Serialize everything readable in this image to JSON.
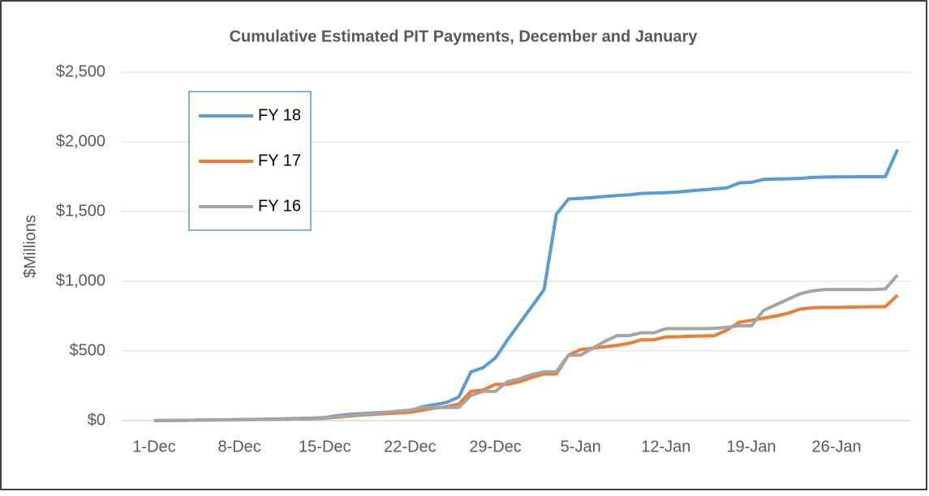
{
  "chart_data": {
    "type": "line",
    "title": "Cumulative Estimated PIT Payments, December and January",
    "y_label": "$Millions",
    "categories": [
      "1-Dec",
      null,
      null,
      null,
      null,
      null,
      null,
      "8-Dec",
      null,
      null,
      null,
      null,
      null,
      null,
      "15-Dec",
      null,
      null,
      null,
      null,
      null,
      null,
      "22-Dec",
      null,
      null,
      null,
      null,
      null,
      null,
      "29-Dec",
      null,
      null,
      null,
      null,
      null,
      null,
      "5-Jan",
      null,
      null,
      null,
      null,
      null,
      null,
      "12-Jan",
      null,
      null,
      null,
      null,
      null,
      null,
      "19-Jan",
      null,
      null,
      null,
      null,
      null,
      null,
      "26-Jan",
      null,
      null,
      null,
      null,
      null
    ],
    "series": [
      {
        "name": "FY 18",
        "color": "#5b9bd5",
        "values": [
          0,
          1,
          2,
          3,
          4,
          5,
          6,
          7,
          9,
          10,
          12,
          14,
          16,
          18,
          22,
          35,
          45,
          50,
          55,
          60,
          65,
          70,
          100,
          115,
          130,
          170,
          350,
          380,
          450,
          580,
          700,
          820,
          940,
          1480,
          1590,
          1595,
          1600,
          1608,
          1615,
          1620,
          1630,
          1632,
          1635,
          1640,
          1648,
          1655,
          1662,
          1670,
          1705,
          1710,
          1730,
          1733,
          1735,
          1738,
          1745,
          1747,
          1748,
          1749,
          1750,
          1750,
          1750,
          1945
        ]
      },
      {
        "name": "FY 17",
        "color": "#ed7d31",
        "values": [
          0,
          1,
          2,
          3,
          4,
          5,
          6,
          7,
          8,
          9,
          10,
          11,
          12,
          14,
          17,
          25,
          32,
          40,
          45,
          50,
          55,
          60,
          75,
          90,
          100,
          120,
          210,
          220,
          260,
          260,
          280,
          310,
          335,
          335,
          470,
          510,
          520,
          530,
          540,
          555,
          580,
          580,
          600,
          602,
          605,
          607,
          610,
          650,
          705,
          720,
          735,
          750,
          770,
          800,
          810,
          812,
          813,
          814,
          815,
          816,
          818,
          900
        ]
      },
      {
        "name": "FY 16",
        "color": "#a5a5a5",
        "values": [
          0,
          1,
          2,
          3,
          4,
          5,
          6,
          7,
          8,
          9,
          10,
          11,
          12,
          14,
          18,
          28,
          36,
          44,
          52,
          60,
          68,
          75,
          95,
          95,
          95,
          95,
          180,
          210,
          210,
          280,
          300,
          330,
          350,
          350,
          470,
          470,
          520,
          570,
          610,
          610,
          630,
          630,
          660,
          660,
          660,
          660,
          662,
          670,
          680,
          680,
          790,
          830,
          870,
          910,
          930,
          940,
          940,
          940,
          940,
          940,
          945,
          1045
        ]
      }
    ],
    "ylim": [
      0,
      2500
    ],
    "yticks": [
      {
        "value": 0,
        "label": "$0"
      },
      {
        "value": 500,
        "label": "$500"
      },
      {
        "value": 1000,
        "label": "$1,000"
      },
      {
        "value": 1500,
        "label": "$1,500"
      },
      {
        "value": 2000,
        "label": "$2,000"
      },
      {
        "value": 2500,
        "label": "$2,500"
      }
    ],
    "grid": true
  }
}
